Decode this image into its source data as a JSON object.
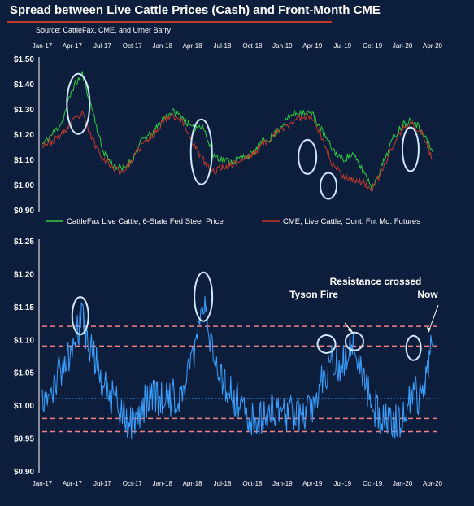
{
  "title": "Spread between Live Cattle Prices (Cash) and Front-Month CME",
  "source": "Source: CattleFax, CME, and Urner Barry",
  "chart_data": [
    {
      "type": "line",
      "x_ticks": [
        "Jan-17",
        "Apr-17",
        "Jul-17",
        "Oct-17",
        "Jan-18",
        "Apr-18",
        "Jul-18",
        "Oct-18",
        "Jan-19",
        "Apr-19",
        "Jul-19",
        "Oct-19",
        "Jan-20",
        "Apr-20"
      ],
      "ylim": [
        0.9,
        1.5
      ],
      "y_ticks": [
        "$0.90",
        "$1.00",
        "$1.10",
        "$1.20",
        "$1.30",
        "$1.40",
        "$1.50"
      ],
      "grid": false,
      "legend_position": "bottom",
      "series": [
        {
          "name": "CattleFax Live Cattle, 6-State Fed Steer Price",
          "color": "#2ecc40",
          "x": [
            "Jan-17",
            "Feb-17",
            "Mar-17",
            "Apr-17",
            "May-17",
            "Jun-17",
            "Jul-17",
            "Aug-17",
            "Sep-17",
            "Oct-17",
            "Nov-17",
            "Dec-17",
            "Jan-18",
            "Feb-18",
            "Mar-18",
            "Apr-18",
            "May-18",
            "Jun-18",
            "Jul-18",
            "Aug-18",
            "Sep-18",
            "Oct-18",
            "Nov-18",
            "Dec-18",
            "Jan-19",
            "Feb-19",
            "Mar-19",
            "Apr-19",
            "May-19",
            "Jun-19",
            "Jul-19",
            "Aug-19",
            "Sep-19",
            "Oct-19",
            "Nov-19",
            "Dec-19",
            "Jan-20",
            "Feb-20",
            "Mar-20",
            "Apr-20"
          ],
          "values": [
            1.16,
            1.2,
            1.25,
            1.38,
            1.44,
            1.3,
            1.14,
            1.08,
            1.06,
            1.1,
            1.18,
            1.2,
            1.26,
            1.29,
            1.27,
            1.22,
            1.24,
            1.12,
            1.1,
            1.09,
            1.11,
            1.12,
            1.17,
            1.19,
            1.24,
            1.28,
            1.29,
            1.28,
            1.21,
            1.14,
            1.1,
            1.12,
            1.06,
            0.99,
            1.08,
            1.18,
            1.24,
            1.26,
            1.21,
            1.13
          ]
        },
        {
          "name": "CME, Live Cattle, Cont. Fnt Mo. Futures",
          "color": "#c0392b",
          "x": [
            "Jan-17",
            "Feb-17",
            "Mar-17",
            "Apr-17",
            "May-17",
            "Jun-17",
            "Jul-17",
            "Aug-17",
            "Sep-17",
            "Oct-17",
            "Nov-17",
            "Dec-17",
            "Jan-18",
            "Feb-18",
            "Mar-18",
            "Apr-18",
            "May-18",
            "Jun-18",
            "Jul-18",
            "Aug-18",
            "Sep-18",
            "Oct-18",
            "Nov-18",
            "Dec-18",
            "Jan-19",
            "Feb-19",
            "Mar-19",
            "Apr-19",
            "May-19",
            "Jun-19",
            "Jul-19",
            "Aug-19",
            "Sep-19",
            "Oct-19",
            "Nov-19",
            "Dec-19",
            "Jan-20",
            "Feb-20",
            "Mar-20",
            "Apr-20"
          ],
          "values": [
            1.16,
            1.17,
            1.2,
            1.25,
            1.28,
            1.18,
            1.11,
            1.07,
            1.05,
            1.1,
            1.16,
            1.19,
            1.25,
            1.28,
            1.25,
            1.17,
            1.1,
            1.05,
            1.07,
            1.08,
            1.1,
            1.12,
            1.16,
            1.19,
            1.22,
            1.25,
            1.27,
            1.27,
            1.18,
            1.08,
            1.04,
            1.02,
            1.01,
            0.98,
            1.06,
            1.15,
            1.22,
            1.24,
            1.2,
            1.1
          ]
        }
      ]
    },
    {
      "type": "line",
      "x_ticks": [
        "Jan-17",
        "Apr-17",
        "Jul-17",
        "Oct-17",
        "Jan-18",
        "Apr-18",
        "Jul-18",
        "Oct-18",
        "Jan-19",
        "Apr-19",
        "Jul-19",
        "Oct-19",
        "Jan-20",
        "Apr-20"
      ],
      "ylim": [
        0.9,
        1.25
      ],
      "y_ticks": [
        "$0.90",
        "$0.95",
        "$1.00",
        "$1.05",
        "$1.10",
        "$1.15",
        "$1.20",
        "$1.25"
      ],
      "grid": false,
      "series": [
        {
          "name": "",
          "color": "#3aa0ff",
          "x": [
            "Jan-17",
            "Feb-17",
            "Mar-17",
            "Apr-17",
            "May-17",
            "Jun-17",
            "Jul-17",
            "Aug-17",
            "Sep-17",
            "Oct-17",
            "Nov-17",
            "Dec-17",
            "Jan-18",
            "Feb-18",
            "Mar-18",
            "Apr-18",
            "May-18",
            "Jun-18",
            "Jul-18",
            "Aug-18",
            "Sep-18",
            "Oct-18",
            "Nov-18",
            "Dec-18",
            "Jan-19",
            "Feb-19",
            "Mar-19",
            "Apr-19",
            "May-19",
            "Jun-19",
            "Jul-19",
            "Aug-19",
            "Sep-19",
            "Oct-19",
            "Nov-19",
            "Dec-19",
            "Jan-20",
            "Feb-20",
            "Mar-20",
            "Apr-20"
          ],
          "values": [
            1.01,
            1.02,
            1.06,
            1.09,
            1.13,
            1.08,
            1.04,
            1.01,
            0.99,
            0.97,
            1.0,
            1.01,
            1.01,
            1.01,
            1.02,
            1.06,
            1.17,
            1.08,
            1.04,
            1.01,
            1.0,
            0.98,
            0.98,
            0.99,
            0.99,
            0.99,
            0.99,
            1.0,
            1.04,
            1.07,
            1.06,
            1.09,
            1.05,
            1.0,
            0.98,
            0.97,
            0.98,
            1.01,
            1.02,
            1.09
          ]
        }
      ],
      "reference_lines": [
        {
          "y": 1.12,
          "color": "#f08080",
          "style": "dashed"
        },
        {
          "y": 1.09,
          "color": "#f08080",
          "style": "dashed"
        },
        {
          "y": 1.01,
          "color": "#3aa0ff",
          "style": "dotted"
        },
        {
          "y": 0.98,
          "color": "#f08080",
          "style": "dashed"
        },
        {
          "y": 0.96,
          "color": "#f08080",
          "style": "dashed"
        }
      ],
      "annotations": [
        "Tyson Fire",
        "Resistance crossed",
        "Now"
      ]
    }
  ]
}
